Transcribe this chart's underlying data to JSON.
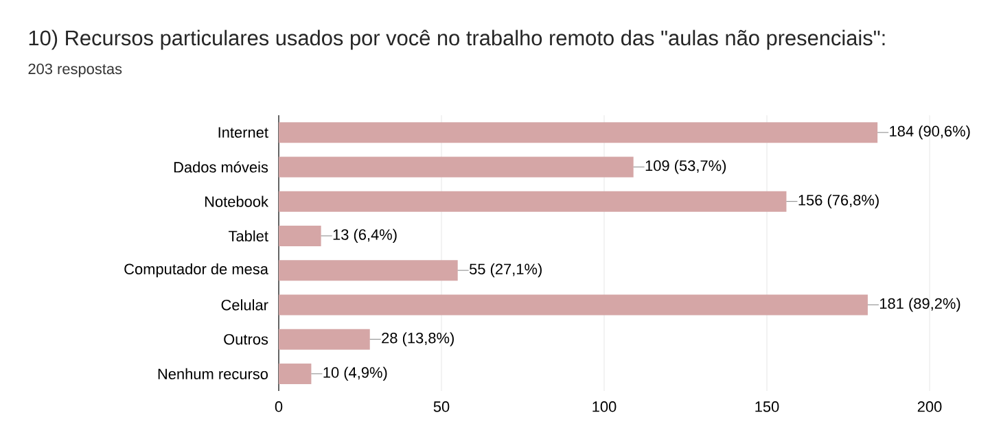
{
  "chart_data": {
    "type": "bar",
    "orientation": "horizontal",
    "title": "10) Recursos particulares usados por você no trabalho remoto das \"aulas não presenciais\":",
    "subtitle": "203 respostas",
    "categories": [
      "Internet",
      "Dados móveis",
      "Notebook",
      "Tablet",
      "Computador de mesa",
      "Celular",
      "Outros",
      "Nenhum recurso"
    ],
    "values": [
      184,
      109,
      156,
      13,
      55,
      181,
      28,
      10
    ],
    "value_labels": [
      "184 (90,6%)",
      "109 (53,7%)",
      "156 (76,8%)",
      "13 (6,4%)",
      "55 (27,1%)",
      "181 (89,2%)",
      "28 (13,8%)",
      "10 (4,9%)"
    ],
    "color": "#d5a6a6",
    "xlim": [
      0,
      200
    ],
    "xticks": [
      0,
      50,
      100,
      150,
      200
    ],
    "grid": "x"
  }
}
